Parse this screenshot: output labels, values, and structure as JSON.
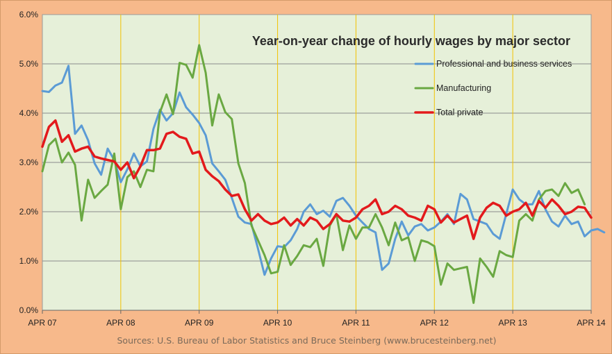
{
  "chart_data": {
    "type": "line",
    "title": "Year-on-year change of hourly wages by major sector",
    "xlabel": "",
    "ylabel": "",
    "x_ticks": [
      "APR 07",
      "APR 08",
      "APR 09",
      "APR 10",
      "APR 11",
      "APR 12",
      "APR 13",
      "APR 14"
    ],
    "y_ticks": [
      "0.0%",
      "1.0%",
      "2.0%",
      "3.0%",
      "4.0%",
      "5.0%",
      "6.0%"
    ],
    "ylim": [
      0,
      6
    ],
    "xlim": [
      "2007-04",
      "2014-04"
    ],
    "grid": "horizontal major gridlines; vertical lines at each April",
    "legend_position": "top-right",
    "colors": {
      "plot_bg": "#e6f0d9",
      "outer_bg": "#f7b98b",
      "horizontal_grid": "#8a8a8a",
      "vertical_grid": "#f2c200"
    },
    "series": [
      {
        "name": "Professional and business services",
        "color": "#5b9bd5",
        "start": "2007-04",
        "values": [
          4.45,
          4.43,
          4.56,
          4.62,
          4.96,
          3.58,
          3.75,
          3.45,
          2.98,
          2.75,
          3.28,
          3.05,
          2.6,
          2.86,
          3.18,
          2.92,
          3.02,
          3.68,
          4.07,
          3.85,
          4.0,
          4.42,
          4.12,
          3.97,
          3.8,
          3.55,
          2.98,
          2.82,
          2.65,
          2.28,
          1.9,
          1.78,
          1.75,
          1.25,
          0.72,
          1.05,
          1.3,
          1.28,
          1.42,
          1.65,
          2.0,
          2.15,
          1.95,
          2.02,
          1.9,
          2.22,
          2.28,
          2.12,
          1.92,
          1.78,
          1.65,
          1.58,
          0.82,
          0.95,
          1.45,
          1.8,
          1.52,
          1.7,
          1.75,
          1.62,
          1.68,
          1.8,
          1.95,
          1.75,
          2.36,
          2.25,
          1.85,
          1.8,
          1.75,
          1.55,
          1.45,
          1.95,
          2.45,
          2.25,
          2.15,
          2.15,
          2.42,
          2.05,
          1.8,
          1.7,
          1.92,
          1.75,
          1.8,
          1.5,
          1.62,
          1.65,
          1.58
        ]
      },
      {
        "name": "Manufacturing",
        "color": "#6aa842",
        "start": "2007-04",
        "values": [
          2.82,
          3.35,
          3.48,
          3.0,
          3.2,
          2.95,
          1.82,
          2.65,
          2.28,
          2.42,
          2.55,
          3.18,
          2.05,
          2.7,
          2.82,
          2.5,
          2.85,
          2.82,
          4.02,
          4.38,
          3.98,
          5.02,
          4.98,
          4.72,
          5.38,
          4.82,
          3.75,
          4.38,
          4.02,
          3.88,
          2.98,
          2.58,
          1.72,
          1.42,
          1.12,
          0.75,
          0.78,
          1.32,
          0.92,
          1.1,
          1.32,
          1.28,
          1.45,
          0.9,
          1.72,
          1.95,
          1.22,
          1.72,
          1.45,
          1.68,
          1.68,
          1.95,
          1.68,
          1.32,
          1.78,
          1.42,
          1.48,
          1.0,
          1.42,
          1.38,
          1.3,
          0.52,
          0.95,
          0.82,
          0.85,
          0.88,
          0.15,
          1.05,
          0.88,
          0.68,
          1.2,
          1.12,
          1.08,
          1.82,
          1.95,
          1.82,
          2.25,
          2.42,
          2.45,
          2.32,
          2.58,
          2.38,
          2.45,
          2.15
        ]
      },
      {
        "name": "Total private",
        "color": "#e31a1c",
        "start": "2007-04",
        "values": [
          3.32,
          3.72,
          3.85,
          3.42,
          3.55,
          3.22,
          3.28,
          3.32,
          3.12,
          3.08,
          3.05,
          3.02,
          2.85,
          3.0,
          2.68,
          2.92,
          3.25,
          3.25,
          3.28,
          3.58,
          3.62,
          3.52,
          3.48,
          3.18,
          3.22,
          2.85,
          2.72,
          2.62,
          2.45,
          2.32,
          2.35,
          2.05,
          1.82,
          1.95,
          1.82,
          1.75,
          1.78,
          1.88,
          1.72,
          1.85,
          1.72,
          1.88,
          1.82,
          1.65,
          1.75,
          1.95,
          1.82,
          1.8,
          1.88,
          2.05,
          2.12,
          2.25,
          1.95,
          2.0,
          2.12,
          2.05,
          1.92,
          1.88,
          1.82,
          2.12,
          2.05,
          1.78,
          1.92,
          1.78,
          1.85,
          1.92,
          1.45,
          1.88,
          2.08,
          2.18,
          2.12,
          1.92,
          2.0,
          2.05,
          2.18,
          1.92,
          2.22,
          2.08,
          2.25,
          2.12,
          1.95,
          2.0,
          2.1,
          2.08,
          1.88
        ]
      }
    ]
  },
  "source_note": "Sources: U.S. Bureau of Labor Statistics and Bruce Steinberg (www.brucesteinberg.net)"
}
